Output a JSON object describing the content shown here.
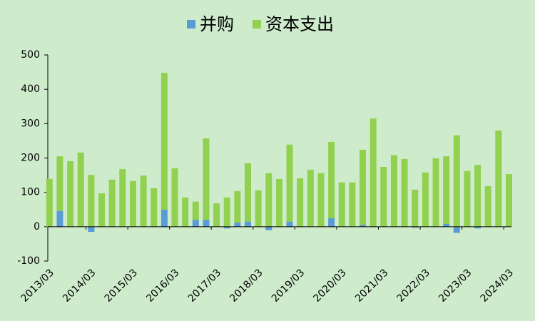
{
  "chart_data": {
    "type": "stacked_bar",
    "categories": [
      "2013/03",
      null,
      null,
      null,
      "2014/03",
      null,
      null,
      null,
      "2015/03",
      null,
      null,
      null,
      "2016/03",
      null,
      null,
      null,
      "2017/03",
      null,
      null,
      null,
      "2018/03",
      null,
      null,
      null,
      "2019/03",
      null,
      null,
      null,
      "2020/03",
      null,
      null,
      null,
      "2021/03",
      null,
      null,
      null,
      "2022/03",
      null,
      null,
      null,
      "2023/03",
      null,
      null,
      null,
      "2024/03"
    ],
    "series": [
      {
        "name": "并购",
        "color": "#5b9bd5",
        "values": [
          0,
          46,
          0,
          0,
          -15,
          0,
          0,
          0,
          0,
          0,
          0,
          50,
          0,
          0,
          20,
          20,
          0,
          -5,
          12,
          15,
          0,
          -10,
          0,
          15,
          0,
          0,
          0,
          25,
          0,
          0,
          5,
          0,
          0,
          0,
          0,
          -3,
          0,
          0,
          8,
          -18,
          0,
          -5,
          0,
          0,
          0
        ]
      },
      {
        "name": "资本支出",
        "color": "#92d050",
        "values": [
          139,
          159,
          191,
          216,
          151,
          97,
          137,
          168,
          133,
          149,
          112,
          398,
          170,
          85,
          53,
          237,
          68,
          85,
          92,
          170,
          106,
          156,
          139,
          224,
          141,
          166,
          156,
          222,
          129,
          129,
          219,
          315,
          174,
          208,
          197,
          108,
          158,
          199,
          197,
          266,
          162,
          180,
          118,
          280,
          153
        ]
      }
    ],
    "ylim": [
      -100,
      500
    ],
    "yticks": [
      -100,
      0,
      100,
      200,
      300,
      400,
      500
    ],
    "legend": "top"
  }
}
